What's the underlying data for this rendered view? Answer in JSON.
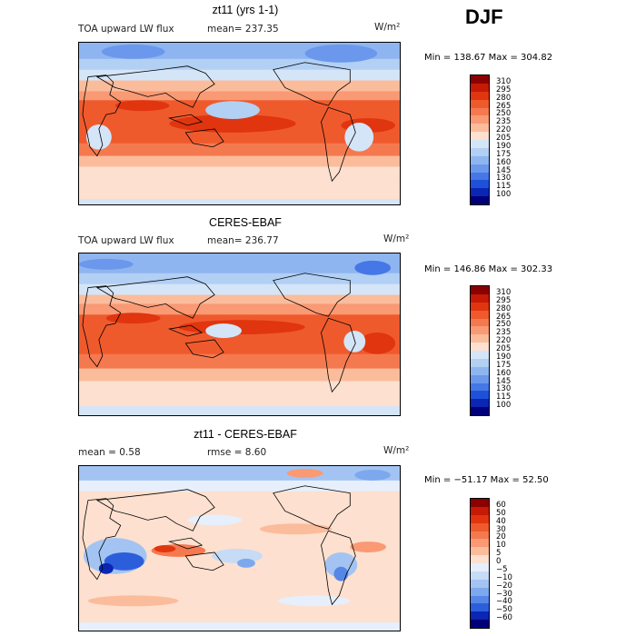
{
  "season": "DJF",
  "panels": [
    {
      "title": "zt11 (yrs 1-1)",
      "field": "TOA upward LW flux",
      "stat1": "mean=  237.35",
      "stat2": "",
      "units": "W/m²",
      "minmax": "Min = 138.67 Max = 304.82",
      "levels": [
        "310",
        "295",
        "280",
        "265",
        "250",
        "235",
        "220",
        "205",
        "190",
        "175",
        "160",
        "145",
        "130",
        "115",
        "100"
      ],
      "colors": [
        "#8b0000",
        "#c41a06",
        "#e0350f",
        "#ef5a2d",
        "#f5794f",
        "#f99a74",
        "#fbbc9c",
        "#fde0cf",
        "#d4e5f8",
        "#b2cff4",
        "#8fb5f0",
        "#6b98ec",
        "#4677e6",
        "#1f51d8",
        "#0a26b3",
        "#00007a"
      ]
    },
    {
      "title": "CERES-EBAF",
      "field": "TOA upward LW flux",
      "stat1": "mean=  236.77",
      "stat2": "",
      "units": "W/m²",
      "minmax": "Min = 146.86 Max = 302.33",
      "levels": [
        "310",
        "295",
        "280",
        "265",
        "250",
        "235",
        "220",
        "205",
        "190",
        "175",
        "160",
        "145",
        "130",
        "115",
        "100"
      ],
      "colors": [
        "#8b0000",
        "#c41a06",
        "#e0350f",
        "#ef5a2d",
        "#f5794f",
        "#f99a74",
        "#fbbc9c",
        "#fde0cf",
        "#d4e5f8",
        "#b2cff4",
        "#8fb5f0",
        "#6b98ec",
        "#4677e6",
        "#1f51d8",
        "#0a26b3",
        "#00007a"
      ]
    },
    {
      "title": "zt11 - CERES-EBAF",
      "field": "",
      "stat1": "mean =    0.58",
      "stat2": "rmse =    8.60",
      "units": "W/m²",
      "minmax": "Min = −51.17 Max =  52.50",
      "levels": [
        "60",
        "50",
        "40",
        "30",
        "20",
        "10",
        "5",
        "0",
        "−5",
        "−10",
        "−20",
        "−30",
        "−40",
        "−50",
        "−60"
      ],
      "colors": [
        "#8b0000",
        "#c41a06",
        "#e0350f",
        "#ef5a2d",
        "#f5794f",
        "#f99a74",
        "#fbbc9c",
        "#fde0cf",
        "#e6effb",
        "#c6dbf6",
        "#a3c4f2",
        "#7ea8ee",
        "#5686e8",
        "#2c5edb",
        "#0a26b3",
        "#00007a"
      ]
    }
  ]
}
